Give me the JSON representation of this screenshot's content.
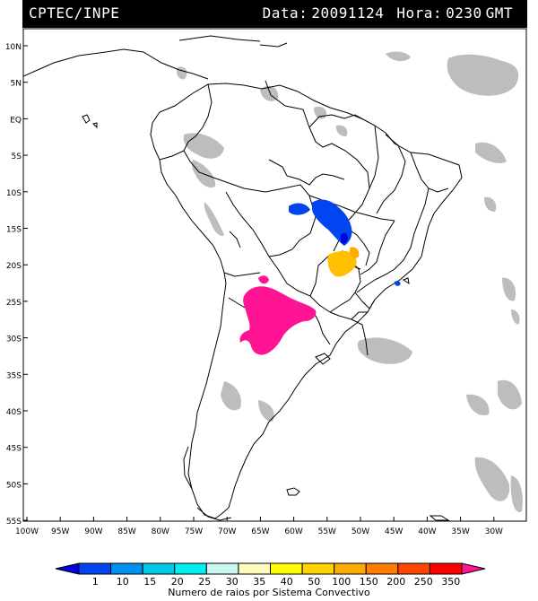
{
  "header": {
    "agency": "CPTEC/INPE",
    "date_label": "Data:",
    "date_value": "20091124",
    "time_label": "Hora:",
    "time_value": "0230",
    "time_zone": "GMT"
  },
  "map": {
    "lat_labels": [
      "10N",
      "5N",
      "EQ",
      "5S",
      "10S",
      "15S",
      "20S",
      "25S",
      "30S",
      "35S",
      "40S",
      "45S",
      "50S",
      "55S"
    ],
    "lon_labels": [
      "100W",
      "95W",
      "90W",
      "85W",
      "80W",
      "75W",
      "70W",
      "65W",
      "60W",
      "55W",
      "50W",
      "45W",
      "40W",
      "35W",
      "30W"
    ],
    "lat_range": [
      -56,
      13
    ],
    "lon_range": [
      -101,
      -27
    ]
  },
  "colorbar": {
    "ticks": [
      "1",
      "10",
      "15",
      "20",
      "25",
      "30",
      "35",
      "40",
      "50",
      "100",
      "150",
      "200",
      "250",
      "350"
    ],
    "colors": [
      "#0000e0",
      "#0045f0",
      "#0090f0",
      "#00c8e6",
      "#00f0f0",
      "#c8f7f0",
      "#fffcc0",
      "#ffff00",
      "#ffd400",
      "#ffaa00",
      "#ff7d00",
      "#ff4600",
      "#ff0000",
      "#ff1493"
    ],
    "caption": "Numero de raios por Sistema Convectivo"
  }
}
